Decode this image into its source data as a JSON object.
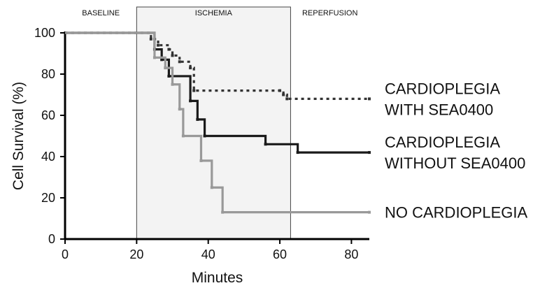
{
  "chart_data": {
    "type": "line",
    "step": true,
    "xlabel": "Minutes",
    "ylabel": "Cell Survival (%)",
    "xlim": [
      0,
      85
    ],
    "ylim": [
      0,
      100
    ],
    "xticks": [
      0,
      20,
      40,
      60,
      80
    ],
    "yticks": [
      0,
      20,
      40,
      60,
      80,
      100
    ],
    "grid": false,
    "phases": [
      {
        "label": "BASELINE",
        "start": 0,
        "end": 20,
        "shaded": false
      },
      {
        "label": "ISCHEMIA",
        "start": 20,
        "end": 63,
        "shaded": true,
        "color": "#f3f3f3"
      },
      {
        "label": "REPERFUSION",
        "start": 63,
        "end": 85,
        "shaded": false
      }
    ],
    "series": [
      {
        "label_lines": [
          "CARDIOPLEGIA",
          "WITH SEA0400"
        ],
        "color": "#333333",
        "style": "dotted",
        "x": [
          0,
          24,
          26,
          29,
          30,
          32,
          35,
          36,
          60,
          61,
          62,
          85
        ],
        "y": [
          100,
          97,
          94,
          92,
          89,
          86,
          83,
          72,
          72,
          70,
          68,
          68
        ]
      },
      {
        "label_lines": [
          "CARDIOPLEGIA",
          "WITHOUT SEA0400"
        ],
        "color": "#1a1a1a",
        "style": "solid",
        "x": [
          0,
          25,
          27,
          29,
          35,
          37,
          39,
          56,
          65,
          85
        ],
        "y": [
          100,
          92,
          87,
          79,
          67,
          58,
          50,
          46,
          42,
          42
        ]
      },
      {
        "label_lines": [
          "NO CARDIOPLEGIA"
        ],
        "color": "#999999",
        "style": "solid",
        "x": [
          0,
          25,
          28,
          30,
          32,
          33,
          38,
          41,
          44,
          85
        ],
        "y": [
          100,
          88,
          83,
          75,
          63,
          50,
          38,
          25,
          13,
          13
        ]
      }
    ]
  }
}
